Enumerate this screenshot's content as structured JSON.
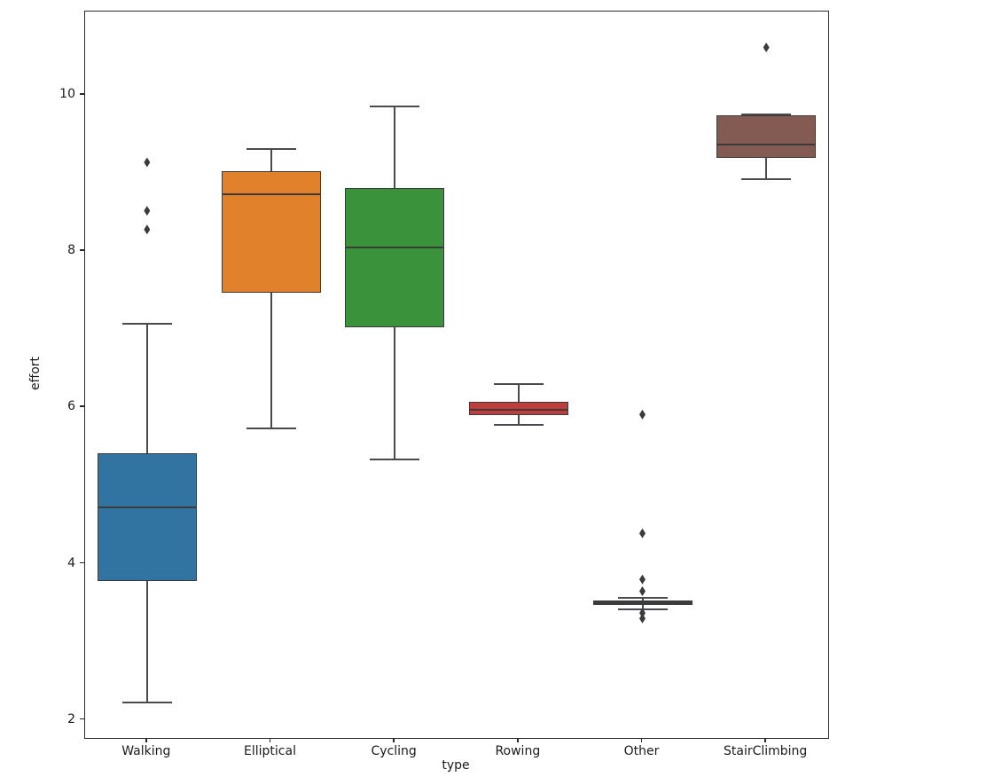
{
  "figure": {
    "background_color": "#ffffff",
    "title": ""
  },
  "chart_data": {
    "type": "box",
    "title": "",
    "xlabel": "type",
    "ylabel": "effort",
    "grid": false,
    "legend": null,
    "categories": [
      "Walking",
      "Elliptical",
      "Cycling",
      "Rowing",
      "Other",
      "StairClimbing"
    ],
    "yticks": [
      2,
      4,
      6,
      8,
      10
    ],
    "ylim": [
      1.77,
      11.07
    ],
    "axis_color": "#2a2a2a",
    "line_color": "#4a4a4e",
    "edge_color": "#3b3b3b",
    "series": [
      {
        "category": "Walking",
        "color": "#3274A1",
        "whisker_low": 2.22,
        "q1": 3.78,
        "median": 4.72,
        "q3": 5.42,
        "whisker_high": 7.07,
        "outliers": [
          8.28,
          8.52,
          9.14
        ]
      },
      {
        "category": "Elliptical",
        "color": "#E1812C",
        "whisker_low": 5.73,
        "q1": 7.47,
        "median": 8.73,
        "q3": 9.03,
        "whisker_high": 9.31,
        "outliers": []
      },
      {
        "category": "Cycling",
        "color": "#3A923A",
        "whisker_low": 5.33,
        "q1": 7.03,
        "median": 8.05,
        "q3": 8.81,
        "whisker_high": 9.85,
        "outliers": []
      },
      {
        "category": "Rowing",
        "color": "#C03D3E",
        "whisker_low": 5.78,
        "q1": 5.9,
        "median": 5.97,
        "q3": 6.07,
        "whisker_high": 6.3,
        "outliers": []
      },
      {
        "category": "Other",
        "color": "#3B3B3B",
        "whisker_low": 3.42,
        "q1": 3.47,
        "median": 3.5,
        "q3": 3.53,
        "whisker_high": 3.56,
        "outliers": [
          3.3,
          3.37,
          3.65,
          3.8,
          4.39,
          5.91
        ]
      },
      {
        "category": "StairClimbing",
        "color": "#845B53",
        "whisker_low": 8.92,
        "q1": 9.2,
        "median": 9.37,
        "q3": 9.74,
        "whisker_high": 9.75,
        "outliers": [
          10.61
        ]
      }
    ]
  }
}
